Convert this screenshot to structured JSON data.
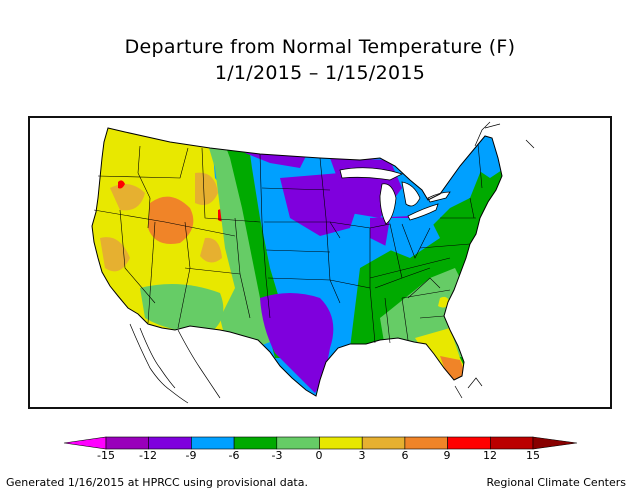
{
  "title": {
    "line1": "Departure from Normal Temperature (F)",
    "line2": "1/1/2015 – 1/15/2015"
  },
  "map": {
    "region": "Contiguous United States",
    "variable": "Temperature departure from normal",
    "units": "F",
    "period_start": "1/1/2015",
    "period_end": "1/15/2015",
    "regional_patterns": [
      {
        "area": "Far West (CA, NV, OR, ID, UT, AZ)",
        "range": "0 to +6",
        "color_class": "yellow/light orange"
      },
      {
        "area": "Southern Idaho / Oregon pockets",
        "range": "+9 to +12",
        "color_class": "red"
      },
      {
        "area": "Northern Plains & Upper Midwest",
        "range": "-12 to -6",
        "color_class": "purple/blue"
      },
      {
        "area": "Texas & Oklahoma",
        "range": "-12 to -9",
        "color_class": "purple"
      },
      {
        "area": "Ohio Valley & Great Lakes",
        "range": "-9 to -3",
        "color_class": "blue/green"
      },
      {
        "area": "Southeast & Mid-Atlantic",
        "range": "-6 to 0",
        "color_class": "green"
      },
      {
        "area": "Northeast / New England",
        "range": "-6 to -3",
        "color_class": "green/blue"
      },
      {
        "area": "Florida peninsula",
        "range": "0 to +9",
        "color_class": "yellow/orange"
      }
    ]
  },
  "legend": {
    "ticks": [
      "-15",
      "-12",
      "-9",
      "-6",
      "-3",
      "0",
      "3",
      "6",
      "9",
      "12",
      "15"
    ],
    "colors": {
      "below_-15": "#ff00ff",
      "-15_to_-12": "#9900bb",
      "-12_to_-9": "#7f00dd",
      "-9_to_-6": "#00a0ff",
      "-6_to_-3": "#00aa00",
      "-3_to_0": "#66cc66",
      "0_to_3": "#e8e800",
      "3_to_6": "#e6b030",
      "6_to_9": "#f08428",
      "9_to_12": "#ff0000",
      "12_to_15": "#bb0000",
      "above_15": "#880000"
    },
    "segments": [
      "#9900bb",
      "#7f00dd",
      "#00a0ff",
      "#00aa00",
      "#66cc66",
      "#e8e800",
      "#e6b030",
      "#f08428",
      "#ff0000",
      "#bb0000"
    ],
    "low_arrow_color": "#ff00ff",
    "high_arrow_color": "#880000"
  },
  "footer": {
    "left": "Generated 1/16/2015 at HPRCC using provisional data.",
    "right": "Regional Climate Centers"
  }
}
